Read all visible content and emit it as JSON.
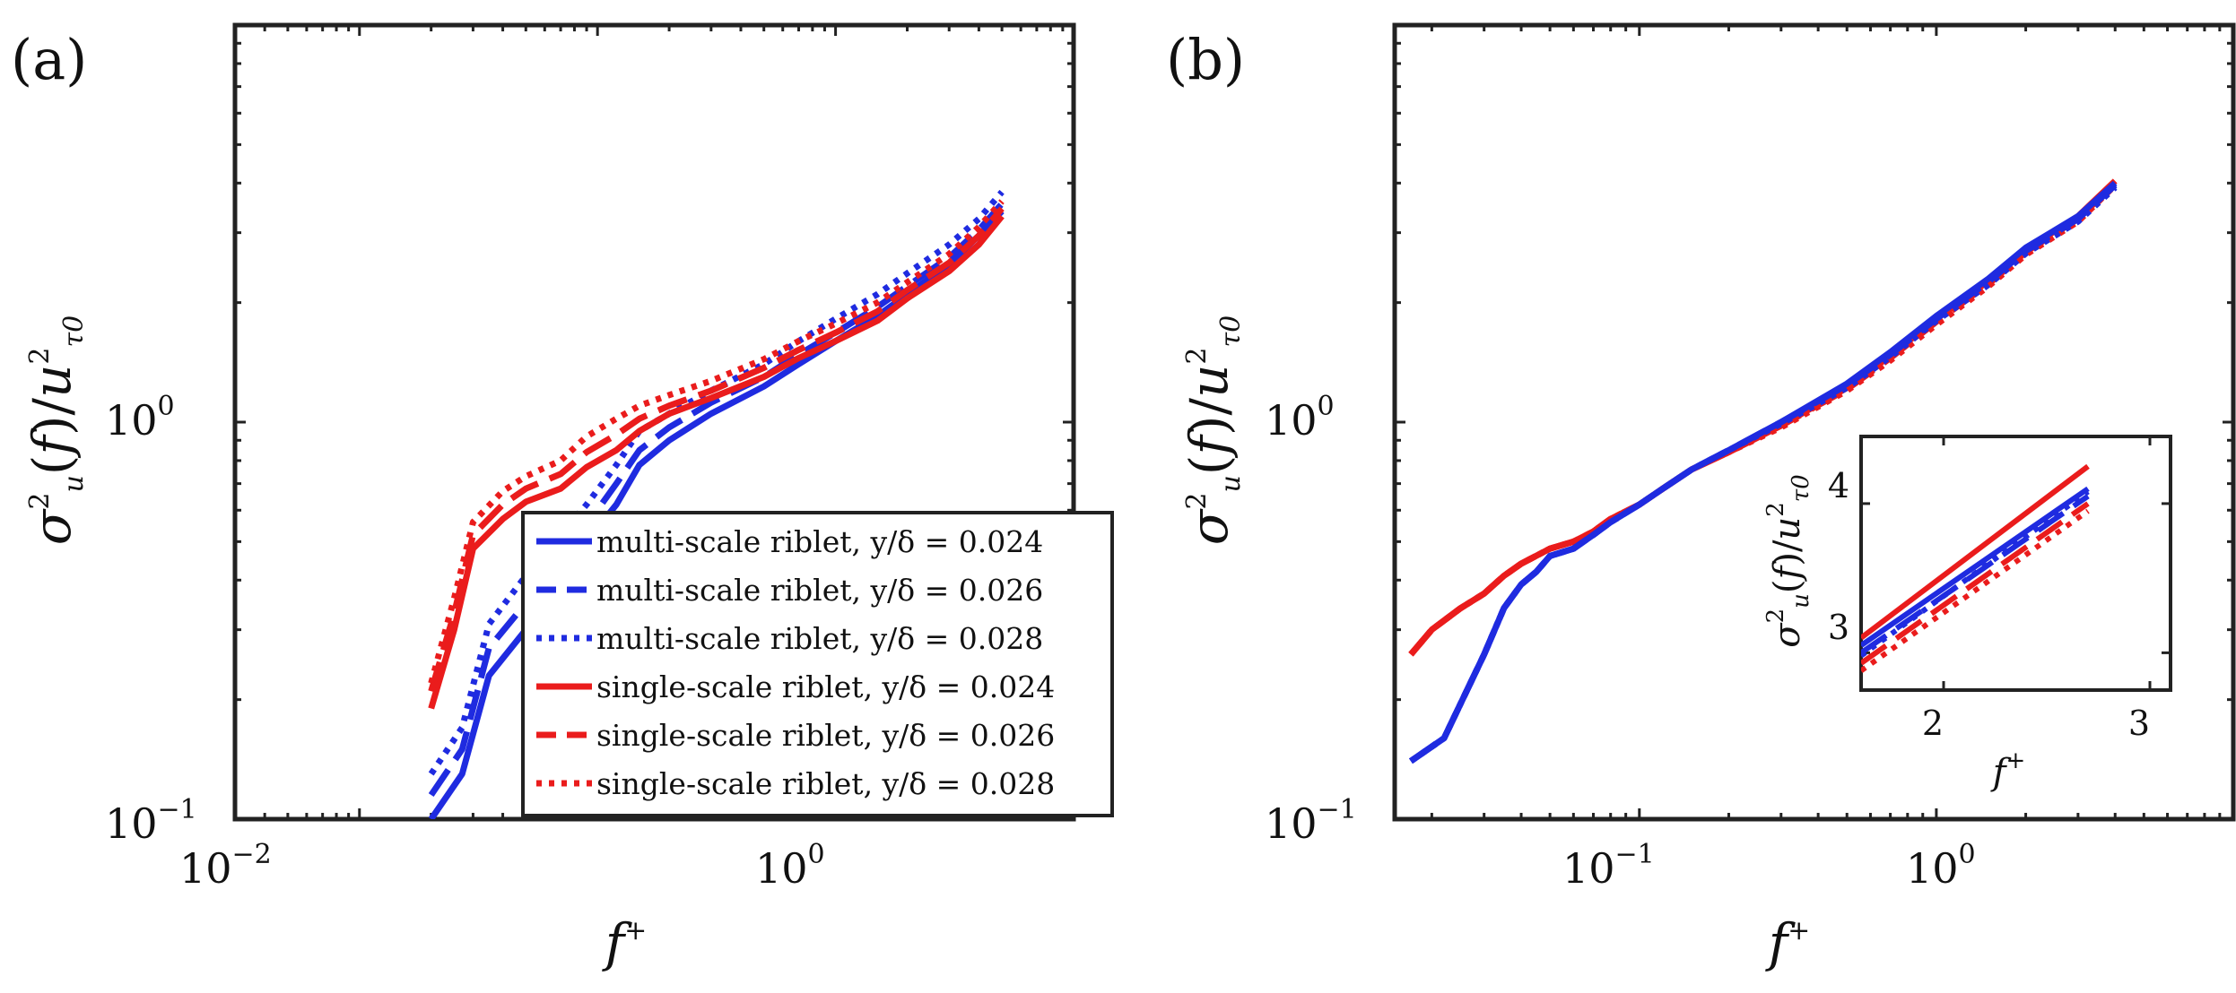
{
  "chart_data": [
    {
      "panel": "(a)",
      "type": "line",
      "xscale": "log",
      "yscale": "log",
      "xlim": [
        0.003,
        10
      ],
      "ylim": [
        0.1,
        10
      ],
      "xlabel": "f⁺",
      "ylabel": "σu²(f)/uτ0²",
      "xticks": [
        "10⁻²",
        "10⁰"
      ],
      "yticks": [
        "10⁻¹",
        "10⁰"
      ],
      "legend_placement": "lower-right",
      "legend": [
        "multi-scale riblet, y/δ = 0.024",
        "multi-scale riblet, y/δ = 0.026",
        "multi-scale riblet, y/δ = 0.028",
        "single-scale riblet, y/δ = 0.024",
        "single-scale riblet, y/δ = 0.026",
        "single-scale riblet, y/δ = 0.028"
      ],
      "series": [
        {
          "name": "multi-scale riblet, y/δ = 0.024",
          "color": "#1f2be0",
          "dash": "solid",
          "x": [
            0.02,
            0.027,
            0.035,
            0.05,
            0.07,
            0.09,
            0.12,
            0.15,
            0.2,
            0.3,
            0.5,
            0.7,
            1.0,
            1.5,
            2.0,
            3.0,
            4.0,
            5.0
          ],
          "y": [
            0.1,
            0.13,
            0.23,
            0.3,
            0.4,
            0.5,
            0.62,
            0.78,
            0.9,
            1.05,
            1.23,
            1.4,
            1.6,
            1.85,
            2.1,
            2.5,
            2.95,
            3.4
          ]
        },
        {
          "name": "multi-scale riblet, y/δ = 0.026",
          "color": "#1f2be0",
          "dash": "dashed",
          "x": [
            0.02,
            0.027,
            0.035,
            0.05,
            0.07,
            0.09,
            0.12,
            0.15,
            0.2,
            0.3,
            0.5,
            0.7,
            1.0,
            1.5,
            2.0,
            3.0,
            4.0,
            5.0
          ],
          "y": [
            0.115,
            0.15,
            0.27,
            0.35,
            0.45,
            0.55,
            0.7,
            0.85,
            0.97,
            1.12,
            1.3,
            1.48,
            1.68,
            1.95,
            2.2,
            2.6,
            3.05,
            3.55
          ]
        },
        {
          "name": "multi-scale riblet, y/δ = 0.028",
          "color": "#1f2be0",
          "dash": "dotted",
          "x": [
            0.02,
            0.027,
            0.035,
            0.05,
            0.07,
            0.09,
            0.12,
            0.15,
            0.2,
            0.3,
            0.5,
            0.7,
            1.0,
            1.5,
            2.0,
            3.0,
            4.0,
            5.0
          ],
          "y": [
            0.13,
            0.17,
            0.31,
            0.41,
            0.52,
            0.62,
            0.78,
            0.95,
            1.05,
            1.2,
            1.4,
            1.6,
            1.82,
            2.1,
            2.37,
            2.8,
            3.25,
            3.8
          ]
        },
        {
          "name": "single-scale riblet, y/δ = 0.024",
          "color": "#ea1c1c",
          "dash": "solid",
          "x": [
            0.02,
            0.025,
            0.03,
            0.04,
            0.05,
            0.07,
            0.09,
            0.12,
            0.15,
            0.2,
            0.3,
            0.5,
            0.7,
            1.0,
            1.5,
            2.0,
            3.0,
            4.0,
            5.0
          ],
          "y": [
            0.19,
            0.3,
            0.48,
            0.57,
            0.63,
            0.68,
            0.77,
            0.85,
            0.95,
            1.05,
            1.15,
            1.3,
            1.45,
            1.6,
            1.8,
            2.05,
            2.4,
            2.8,
            3.3
          ]
        },
        {
          "name": "single-scale riblet, y/δ = 0.026",
          "color": "#ea1c1c",
          "dash": "dashed",
          "x": [
            0.02,
            0.025,
            0.03,
            0.04,
            0.05,
            0.07,
            0.09,
            0.12,
            0.15,
            0.2,
            0.3,
            0.5,
            0.7,
            1.0,
            1.5,
            2.0,
            3.0,
            4.0,
            5.0
          ],
          "y": [
            0.21,
            0.33,
            0.52,
            0.62,
            0.68,
            0.74,
            0.84,
            0.93,
            1.02,
            1.1,
            1.2,
            1.37,
            1.52,
            1.68,
            1.9,
            2.15,
            2.52,
            2.95,
            3.45
          ]
        },
        {
          "name": "single-scale riblet, y/δ = 0.028",
          "color": "#ea1c1c",
          "dash": "dotted",
          "x": [
            0.02,
            0.025,
            0.03,
            0.04,
            0.05,
            0.07,
            0.09,
            0.12,
            0.15,
            0.2,
            0.3,
            0.5,
            0.7,
            1.0,
            1.5,
            2.0,
            3.0,
            4.0,
            5.0
          ],
          "y": [
            0.22,
            0.36,
            0.56,
            0.67,
            0.73,
            0.8,
            0.92,
            1.02,
            1.1,
            1.17,
            1.27,
            1.44,
            1.6,
            1.77,
            2.0,
            2.25,
            2.65,
            3.1,
            3.6
          ]
        }
      ]
    },
    {
      "panel": "(b)",
      "type": "line",
      "xscale": "log",
      "yscale": "log",
      "xlim": [
        0.015,
        10
      ],
      "ylim": [
        0.1,
        10
      ],
      "xlabel": "f⁺",
      "ylabel": "σu²(f)/uτ0²",
      "xticks": [
        "10⁻¹",
        "10⁰"
      ],
      "yticks": [
        "10⁻¹",
        "10⁰"
      ],
      "series": [
        {
          "name": "multi-scale riblet, y/δ = 0.024",
          "color": "#1f2be0",
          "dash": "solid",
          "x": [
            0.017,
            0.022,
            0.03,
            0.035,
            0.04,
            0.045,
            0.05,
            0.06,
            0.07,
            0.08,
            0.1,
            0.12,
            0.15,
            0.2,
            0.3,
            0.5,
            0.7,
            1.0,
            1.5,
            2.0,
            3.0,
            4.0
          ],
          "y": [
            0.14,
            0.16,
            0.26,
            0.34,
            0.39,
            0.42,
            0.46,
            0.48,
            0.52,
            0.56,
            0.62,
            0.68,
            0.76,
            0.85,
            1.0,
            1.25,
            1.5,
            1.85,
            2.3,
            2.75,
            3.3,
            4.0
          ]
        },
        {
          "name": "multi-scale riblet, y/δ = 0.026",
          "color": "#1f2be0",
          "dash": "dashed",
          "x": [
            0.017,
            0.022,
            0.03,
            0.035,
            0.04,
            0.045,
            0.05,
            0.06,
            0.07,
            0.08,
            0.1,
            0.12,
            0.15,
            0.2,
            0.3,
            0.5,
            0.7,
            1.0,
            1.5,
            2.0,
            3.0,
            4.0
          ],
          "y": [
            0.14,
            0.16,
            0.26,
            0.34,
            0.39,
            0.42,
            0.46,
            0.48,
            0.52,
            0.56,
            0.62,
            0.68,
            0.76,
            0.85,
            1.0,
            1.24,
            1.48,
            1.82,
            2.26,
            2.7,
            3.25,
            3.95
          ]
        },
        {
          "name": "multi-scale riblet, y/δ = 0.028",
          "color": "#1f2be0",
          "dash": "dotted",
          "x": [
            0.017,
            0.022,
            0.03,
            0.035,
            0.04,
            0.045,
            0.05,
            0.06,
            0.07,
            0.08,
            0.1,
            0.12,
            0.15,
            0.2,
            0.3,
            0.5,
            0.7,
            1.0,
            1.5,
            2.0,
            3.0,
            4.0
          ],
          "y": [
            0.14,
            0.16,
            0.26,
            0.34,
            0.39,
            0.42,
            0.46,
            0.48,
            0.52,
            0.56,
            0.62,
            0.68,
            0.76,
            0.85,
            0.99,
            1.22,
            1.46,
            1.8,
            2.22,
            2.66,
            3.2,
            3.9
          ]
        },
        {
          "name": "single-scale riblet, y/δ = 0.024",
          "color": "#ea1c1c",
          "dash": "solid",
          "x": [
            0.017,
            0.02,
            0.025,
            0.03,
            0.035,
            0.04,
            0.05,
            0.06,
            0.07,
            0.08,
            0.1,
            0.12,
            0.15,
            0.2,
            0.3,
            0.5,
            0.7,
            1.0,
            1.5,
            2.0,
            3.0,
            4.0
          ],
          "y": [
            0.26,
            0.3,
            0.34,
            0.37,
            0.41,
            0.44,
            0.48,
            0.5,
            0.53,
            0.57,
            0.62,
            0.68,
            0.76,
            0.84,
            0.98,
            1.22,
            1.47,
            1.82,
            2.27,
            2.72,
            3.3,
            4.05
          ]
        },
        {
          "name": "single-scale riblet, y/δ = 0.026",
          "color": "#ea1c1c",
          "dash": "dashed",
          "x": [
            0.017,
            0.02,
            0.025,
            0.03,
            0.035,
            0.04,
            0.05,
            0.06,
            0.07,
            0.08,
            0.1,
            0.12,
            0.15,
            0.2,
            0.3,
            0.5,
            0.7,
            1.0,
            1.5,
            2.0,
            3.0,
            4.0
          ],
          "y": [
            0.26,
            0.3,
            0.34,
            0.37,
            0.41,
            0.44,
            0.48,
            0.5,
            0.53,
            0.57,
            0.62,
            0.68,
            0.76,
            0.84,
            0.98,
            1.21,
            1.45,
            1.79,
            2.23,
            2.68,
            3.25,
            4.0
          ]
        },
        {
          "name": "single-scale riblet, y/δ = 0.028",
          "color": "#ea1c1c",
          "dash": "dotted",
          "x": [
            0.017,
            0.02,
            0.025,
            0.03,
            0.035,
            0.04,
            0.05,
            0.06,
            0.07,
            0.08,
            0.1,
            0.12,
            0.15,
            0.2,
            0.3,
            0.5,
            0.7,
            1.0,
            1.5,
            2.0,
            3.0,
            4.0
          ],
          "y": [
            0.26,
            0.3,
            0.34,
            0.37,
            0.41,
            0.44,
            0.48,
            0.5,
            0.53,
            0.57,
            0.62,
            0.68,
            0.76,
            0.84,
            0.97,
            1.2,
            1.43,
            1.76,
            2.2,
            2.64,
            3.2,
            3.95
          ]
        }
      ],
      "inset": {
        "type": "line",
        "xscale": "linear",
        "yscale": "linear",
        "xlim": [
          1.6,
          3.1
        ],
        "ylim": [
          2.75,
          4.45
        ],
        "xlabel": "f⁺",
        "ylabel": "σu²(f)/uτ0²",
        "xticks": [
          "2",
          "3"
        ],
        "yticks": [
          "3",
          "4"
        ],
        "series": [
          {
            "name": "multi-scale riblet, y/δ = 0.024",
            "color": "#1f2be0",
            "dash": "solid",
            "x": [
              1.6,
              2.7
            ],
            "y": [
              3.05,
              4.1
            ]
          },
          {
            "name": "multi-scale riblet, y/δ = 0.026",
            "color": "#1f2be0",
            "dash": "dashed",
            "x": [
              1.6,
              2.7
            ],
            "y": [
              3.0,
              4.05
            ]
          },
          {
            "name": "multi-scale riblet, y/δ = 0.028",
            "color": "#1f2be0",
            "dash": "dotted",
            "x": [
              1.6,
              2.7
            ],
            "y": [
              2.98,
              4.08
            ]
          },
          {
            "name": "single-scale riblet, y/δ = 0.024",
            "color": "#ea1c1c",
            "dash": "solid",
            "x": [
              1.6,
              2.7
            ],
            "y": [
              3.1,
              4.25
            ]
          },
          {
            "name": "single-scale riblet, y/δ = 0.026",
            "color": "#ea1c1c",
            "dash": "dashed",
            "x": [
              1.6,
              2.7
            ],
            "y": [
              2.93,
              4.0
            ]
          },
          {
            "name": "single-scale riblet, y/δ = 0.028",
            "color": "#ea1c1c",
            "dash": "dotted",
            "x": [
              1.6,
              2.7
            ],
            "y": [
              2.88,
              3.95
            ]
          }
        ]
      }
    }
  ]
}
